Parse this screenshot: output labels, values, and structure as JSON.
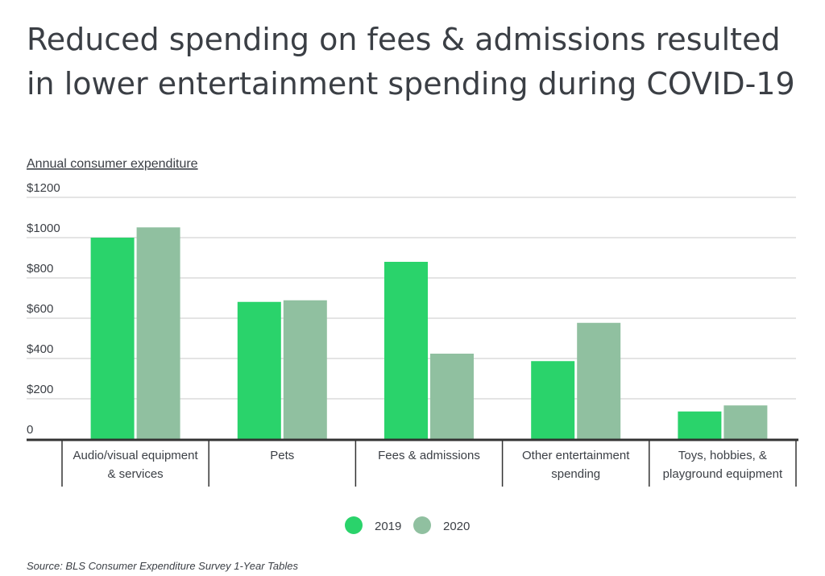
{
  "chart_data": {
    "type": "bar",
    "title_lines": [
      "Reduced spending on fees & admissions resulted",
      "in lower entertainment spending during COVID-19"
    ],
    "ylabel": "Annual consumer expenditure",
    "xlabel": "",
    "ylim": [
      0,
      1200
    ],
    "yticks": [
      0,
      200,
      400,
      600,
      800,
      1000,
      1200
    ],
    "ytick_labels": [
      "0",
      "$200",
      "$400",
      "$600",
      "$800",
      "$1000",
      "$1200"
    ],
    "grid": true,
    "legend_position": "bottom",
    "categories": [
      [
        "Audio/visual equipment",
        "& services"
      ],
      [
        "Pets"
      ],
      [
        "Fees & admissions"
      ],
      [
        "Other entertainment",
        "spending"
      ],
      [
        "Toys, hobbies, &",
        "playground equipment"
      ]
    ],
    "series": [
      {
        "name": "2019",
        "color": "#2ad36b",
        "values": [
          1000,
          681,
          880,
          387,
          137
        ]
      },
      {
        "name": "2020",
        "color": "#90c0a0",
        "values": [
          1051,
          689,
          424,
          577,
          167
        ]
      }
    ],
    "source": "Source:  BLS Consumer Expenditure Survey 1-Year Tables"
  }
}
